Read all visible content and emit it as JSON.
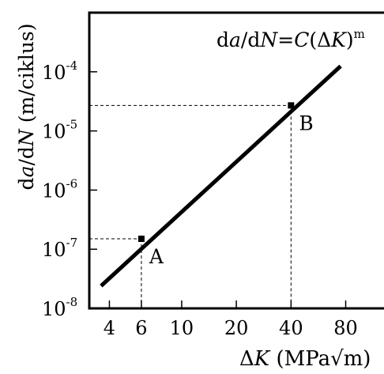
{
  "chart_data": {
    "type": "line",
    "x_scale": "log",
    "y_scale": "log",
    "xlim": [
      3.1,
      130
    ],
    "ylim": [
      1e-08,
      0.001
    ],
    "x_ticks": [
      4,
      6,
      10,
      20,
      40,
      80
    ],
    "y_ticks": [
      {
        "value": 1e-08,
        "base": "10",
        "exp": "-8"
      },
      {
        "value": 1e-07,
        "base": "10",
        "exp": "-7"
      },
      {
        "value": 1e-06,
        "base": "10",
        "exp": "-6"
      },
      {
        "value": 1e-05,
        "base": "10",
        "exp": "-5"
      },
      {
        "value": 0.0001,
        "base": "10",
        "exp": "-4"
      }
    ],
    "ylabel": "da/dN (m/ciklus)",
    "xlabel": "ΔK (MPa√m)",
    "equation": "da/dN=C(ΔK)m",
    "series": [
      {
        "x": [
          3.6,
          75
        ],
        "y": [
          2.4e-08,
          0.000125
        ]
      }
    ],
    "points": [
      {
        "label": "A",
        "x": 6,
        "y": 1.5e-07
      },
      {
        "label": "B",
        "x": 40,
        "y": 2.7e-05
      }
    ],
    "grid": false,
    "colors": {
      "line": "#000000",
      "guide": "#000000",
      "background": "#ffffff"
    }
  }
}
